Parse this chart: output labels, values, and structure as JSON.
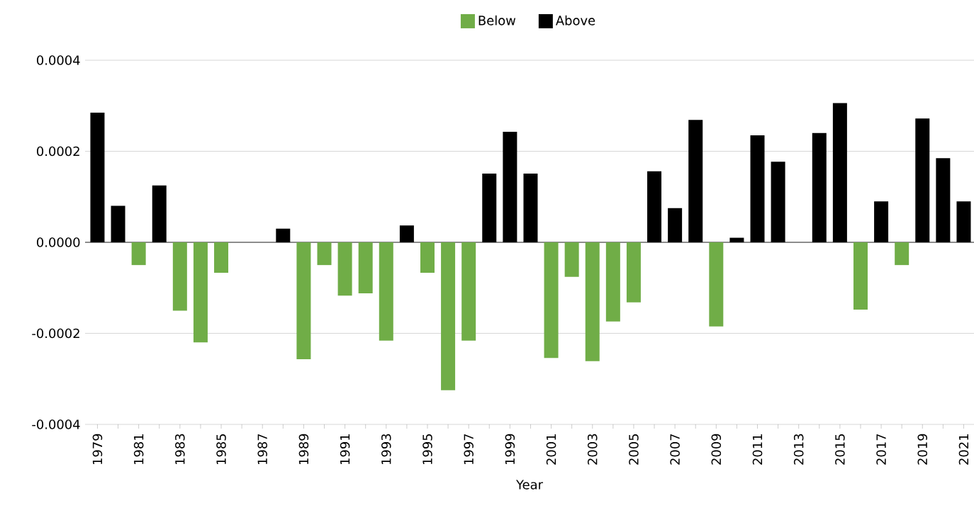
{
  "chart_data": {
    "type": "bar",
    "xlabel": "Year",
    "categories": [
      "1979",
      null,
      "1981",
      null,
      "1983",
      null,
      "1985",
      null,
      "1987",
      null,
      "1989",
      null,
      "1991",
      null,
      "1993",
      null,
      "1995",
      null,
      "1997",
      null,
      "1999",
      null,
      "2001",
      null,
      "2003",
      null,
      "2005",
      null,
      "2007",
      null,
      "2009",
      null,
      "2011",
      null,
      "2013",
      null,
      "2015",
      null,
      "2017",
      null,
      "2019",
      null,
      "2021"
    ],
    "series": [
      {
        "name": "Below",
        "color": "#70ad47",
        "values": [
          null,
          null,
          -5e-05,
          null,
          -0.00015,
          -0.00022,
          -6.7e-05,
          null,
          null,
          null,
          -0.000257,
          -5e-05,
          -0.000117,
          -0.000112,
          -0.000216,
          null,
          -6.7e-05,
          -0.000325,
          -0.000216,
          null,
          null,
          null,
          -0.000254,
          -7.6e-05,
          -0.000261,
          -0.000174,
          -0.000132,
          null,
          null,
          null,
          -0.000185,
          null,
          null,
          null,
          null,
          null,
          null,
          -0.000148,
          null,
          -5e-05,
          null,
          null,
          null
        ]
      },
      {
        "name": "Above",
        "color": "#000000",
        "values": [
          0.000285,
          8e-05,
          null,
          0.000125,
          null,
          null,
          null,
          null,
          null,
          3e-05,
          null,
          null,
          null,
          null,
          null,
          3.7e-05,
          null,
          null,
          null,
          0.000151,
          0.000243,
          0.000151,
          null,
          null,
          null,
          null,
          null,
          0.000156,
          7.5e-05,
          0.000269,
          null,
          1e-05,
          0.000235,
          0.000177,
          null,
          0.00024,
          0.000306,
          null,
          9e-05,
          null,
          0.000272,
          0.000185,
          9e-05
        ]
      }
    ],
    "ylim": [
      -0.0004,
      0.0004
    ],
    "yticks": [
      {
        "value": -0.0004,
        "label": "-0.0004"
      },
      {
        "value": -0.0002,
        "label": "-0.0002"
      },
      {
        "value": 0,
        "label": "0.0000"
      },
      {
        "value": 0.0002,
        "label": "0.0002"
      },
      {
        "value": 0.0004,
        "label": "0.0004"
      }
    ],
    "grid": "y",
    "legend": "top"
  }
}
